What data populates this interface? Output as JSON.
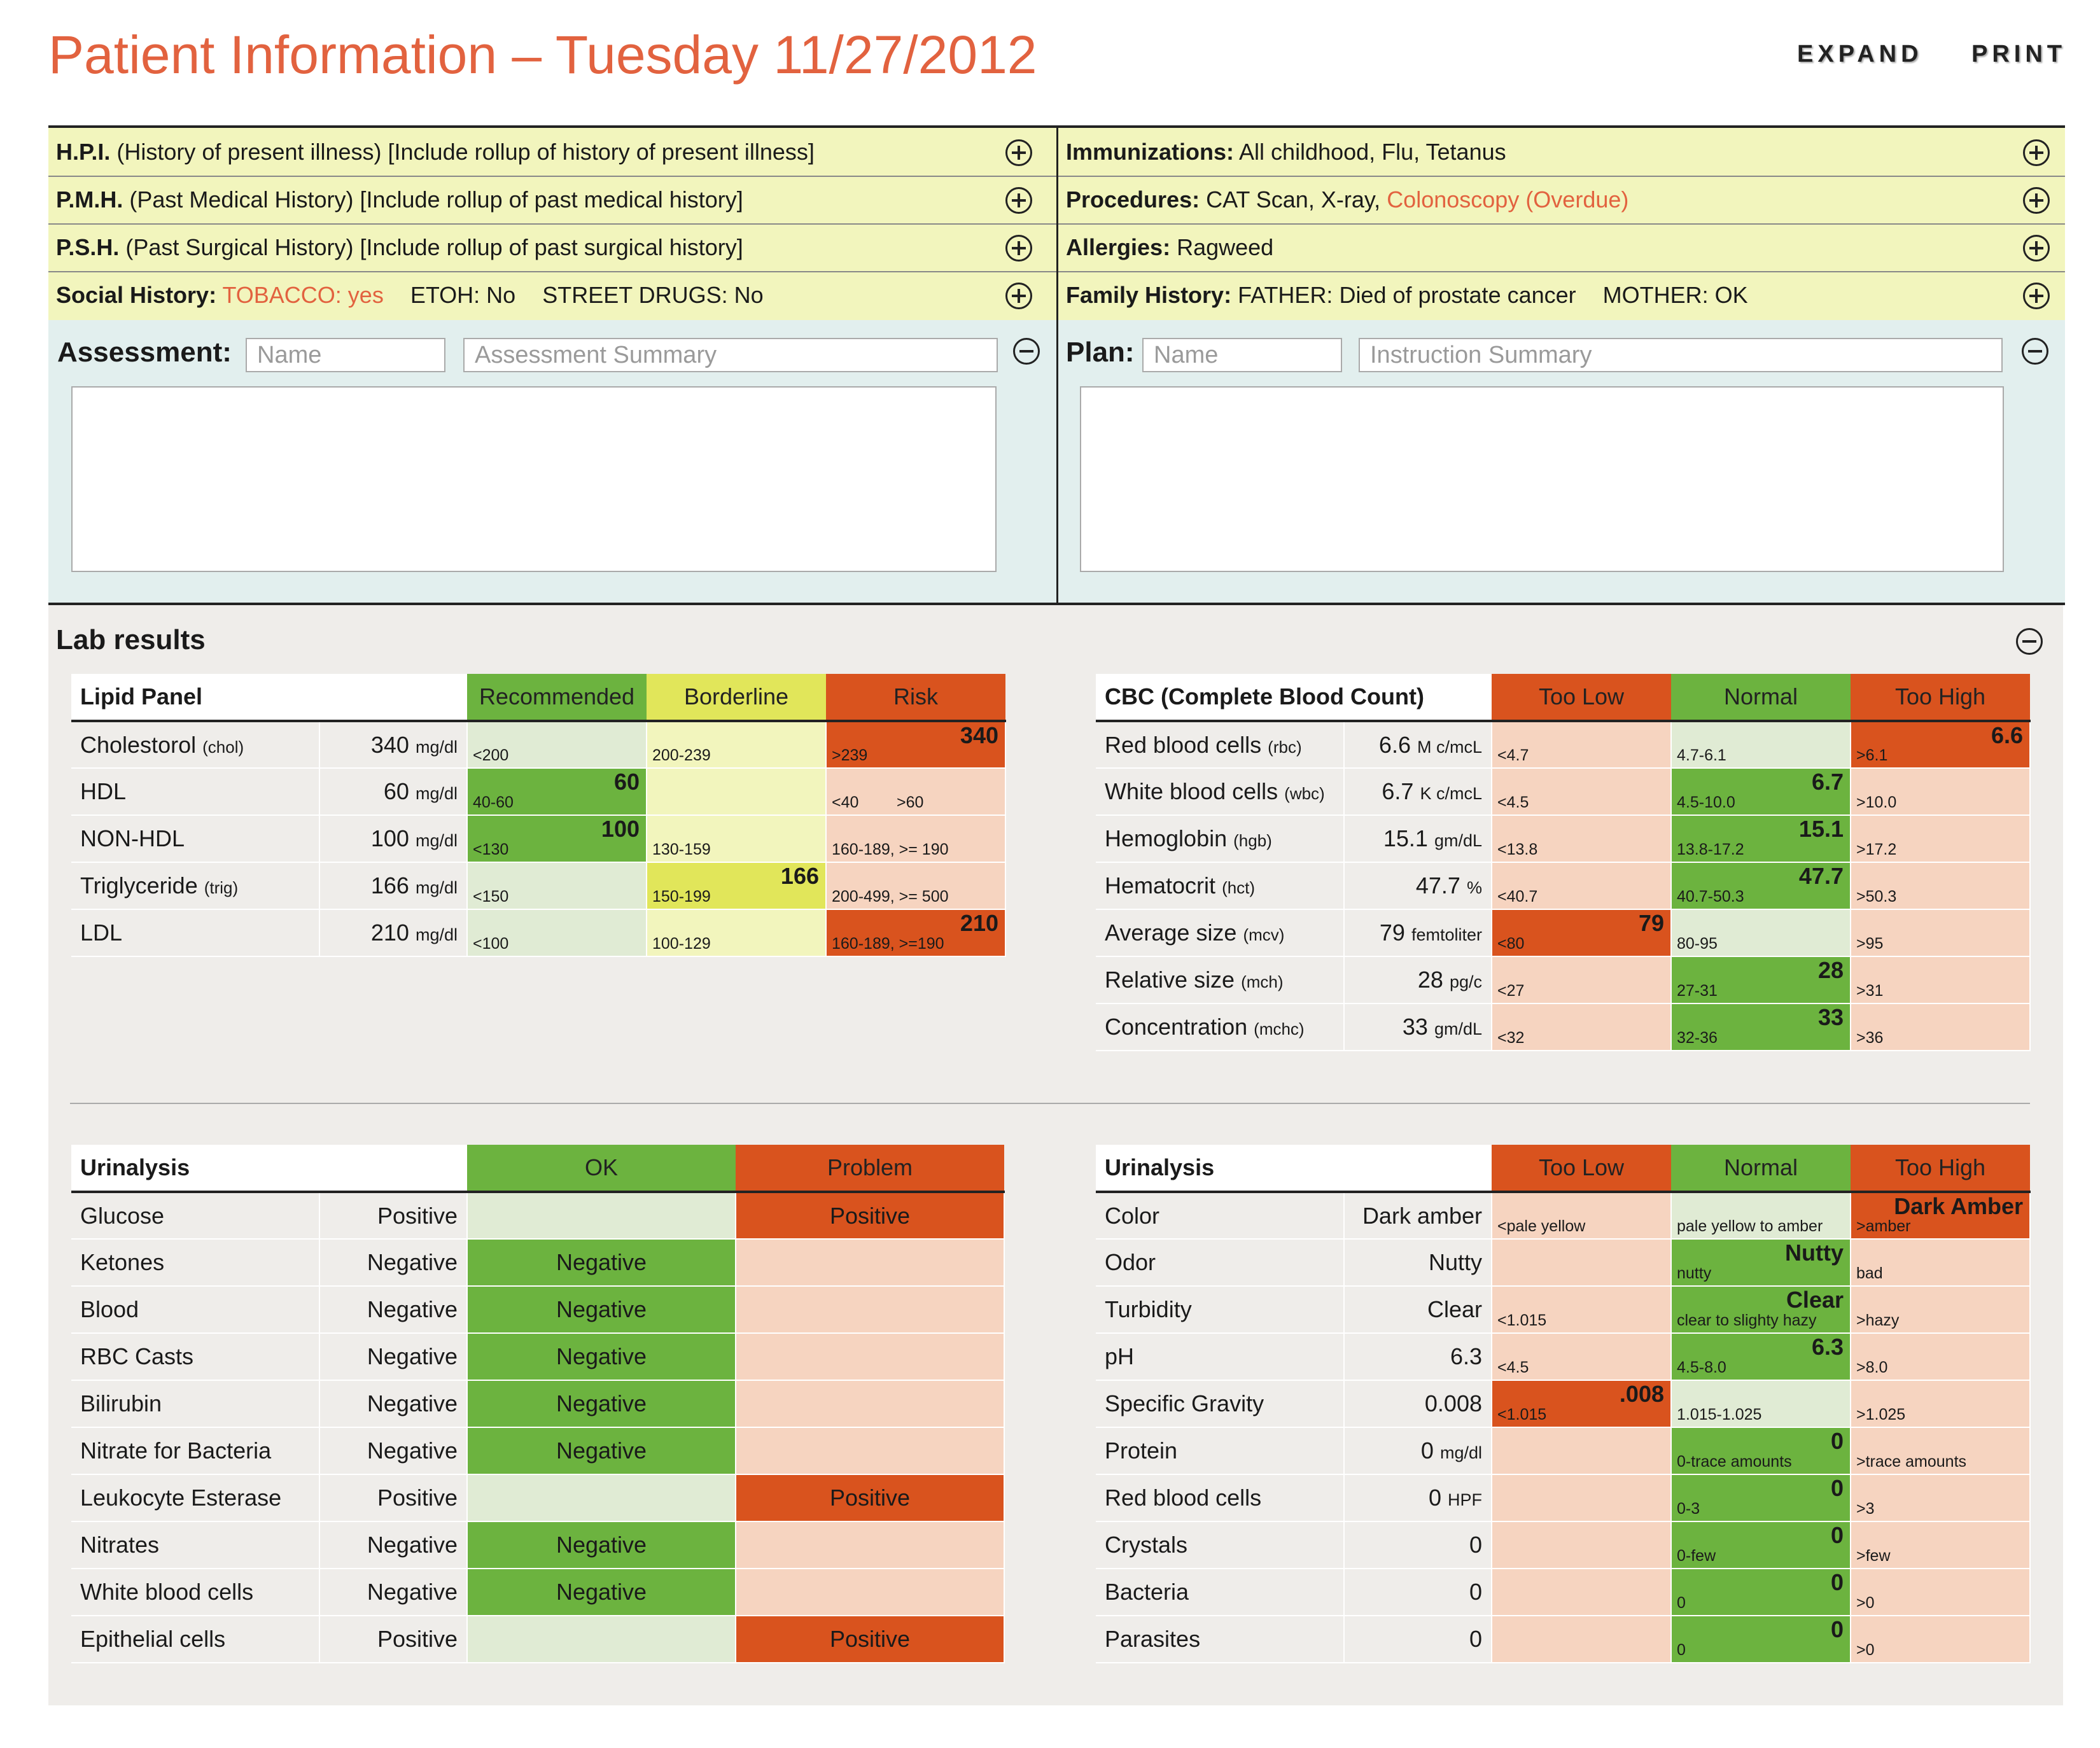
{
  "header": {
    "title": "Patient Information – Tuesday 11/27/2012",
    "expand": "EXPAND",
    "print": "PRINT"
  },
  "history_left": [
    {
      "label": "H.P.I.",
      "text": "(History of present illness) [Include rollup of history of present illness]"
    },
    {
      "label": "P.M.H.",
      "text": "(Past Medical History) [Include rollup of past medical history]"
    },
    {
      "label": "P.S.H.",
      "text": "(Past Surgical History) [Include rollup of past surgical history]"
    }
  ],
  "social": {
    "label": "Social History:",
    "tobacco": "TOBACCO: yes",
    "etoh": "ETOH: No",
    "drugs": "STREET DRUGS: No"
  },
  "history_right": {
    "immunizations": {
      "label": "Immunizations:",
      "text": "All childhood, Flu, Tetanus"
    },
    "procedures": {
      "label": "Procedures:",
      "text": "CAT Scan, X-ray,",
      "alert": "Colonoscopy (Overdue)"
    },
    "allergies": {
      "label": "Allergies:",
      "text": "Ragweed"
    },
    "family": {
      "label": "Family History:",
      "father": "FATHER: Died of prostate cancer",
      "mother": "MOTHER: OK"
    }
  },
  "assessment": {
    "label": "Assessment:",
    "name_placeholder": "Name",
    "summary_placeholder": "Assessment Summary"
  },
  "plan": {
    "label": "Plan:",
    "name_placeholder": "Name",
    "summary_placeholder": "Instruction Summary"
  },
  "labs": {
    "title": "Lab results",
    "lipid": {
      "title": "Lipid Panel",
      "headers": [
        "Recommended",
        "Borderline",
        "Risk"
      ],
      "rows": [
        {
          "name": "Cholestorol",
          "abbr": "(chol)",
          "value": "340",
          "unit": "mg/dl",
          "ranges": [
            "<200",
            "200-239",
            ">239"
          ],
          "hit": 2,
          "result": "340"
        },
        {
          "name": "HDL",
          "abbr": "",
          "value": "60",
          "unit": "mg/dl",
          "ranges": [
            "40-60",
            "",
            "<40"
          ],
          "range_extra": ">60",
          "hit": 0,
          "result": "60"
        },
        {
          "name": "NON-HDL",
          "abbr": "",
          "value": "100",
          "unit": "mg/dl",
          "ranges": [
            "<130",
            "130-159",
            "160-189, >= 190"
          ],
          "hit": 0,
          "result": "100"
        },
        {
          "name": "Triglyceride",
          "abbr": "(trig)",
          "value": "166",
          "unit": "mg/dl",
          "ranges": [
            "<150",
            "150-199",
            "200-499, >= 500"
          ],
          "hit": 1,
          "result": "166"
        },
        {
          "name": "LDL",
          "abbr": "",
          "value": "210",
          "unit": "mg/dl",
          "ranges": [
            "<100",
            "100-129",
            "160-189, >=190"
          ],
          "hit": 2,
          "result": "210"
        }
      ]
    },
    "cbc": {
      "title": "CBC (Complete Blood Count)",
      "headers": [
        "Too Low",
        "Normal",
        "Too High"
      ],
      "rows": [
        {
          "name": "Red blood cells",
          "abbr": "(rbc)",
          "value": "6.6",
          "unit": "M c/mcL",
          "ranges": [
            "<4.7",
            "4.7-6.1",
            ">6.1"
          ],
          "hit": 2,
          "result": "6.6"
        },
        {
          "name": "White blood cells",
          "abbr": "(wbc)",
          "value": "6.7",
          "unit": "K c/mcL",
          "ranges": [
            "<4.5",
            "4.5-10.0",
            ">10.0"
          ],
          "hit": 1,
          "result": "6.7"
        },
        {
          "name": "Hemoglobin",
          "abbr": "(hgb)",
          "value": "15.1",
          "unit": "gm/dL",
          "ranges": [
            "<13.8",
            "13.8-17.2",
            ">17.2"
          ],
          "hit": 1,
          "result": "15.1"
        },
        {
          "name": "Hematocrit",
          "abbr": "(hct)",
          "value": "47.7",
          "unit": "%",
          "ranges": [
            "<40.7",
            "40.7-50.3",
            ">50.3"
          ],
          "hit": 1,
          "result": "47.7"
        },
        {
          "name": "Average size",
          "abbr": "(mcv)",
          "value": "79",
          "unit": "femtoliter",
          "ranges": [
            "<80",
            "80-95",
            ">95"
          ],
          "hit": 0,
          "result": "79"
        },
        {
          "name": "Relative size",
          "abbr": "(mch)",
          "value": "28",
          "unit": "pg/c",
          "ranges": [
            "<27",
            "27-31",
            ">31"
          ],
          "hit": 1,
          "result": "28"
        },
        {
          "name": "Concentration",
          "abbr": "(mchc)",
          "value": "33",
          "unit": "gm/dL",
          "ranges": [
            "<32",
            "32-36",
            ">36"
          ],
          "hit": 1,
          "result": "33"
        }
      ]
    },
    "urinalysis1": {
      "title": "Urinalysis",
      "headers": [
        "OK",
        "Problem"
      ],
      "rows": [
        {
          "name": "Glucose",
          "value": "Positive",
          "hit": 1,
          "result": "Positive"
        },
        {
          "name": "Ketones",
          "value": "Negative",
          "hit": 0,
          "result": "Negative"
        },
        {
          "name": "Blood",
          "value": "Negative",
          "hit": 0,
          "result": "Negative"
        },
        {
          "name": "RBC Casts",
          "value": "Negative",
          "hit": 0,
          "result": "Negative"
        },
        {
          "name": "Bilirubin",
          "value": "Negative",
          "hit": 0,
          "result": "Negative"
        },
        {
          "name": "Nitrate for Bacteria",
          "value": "Negative",
          "hit": 0,
          "result": "Negative"
        },
        {
          "name": "Leukocyte Esterase",
          "value": "Positive",
          "hit": 1,
          "result": "Positive"
        },
        {
          "name": "Nitrates",
          "value": "Negative",
          "hit": 0,
          "result": "Negative"
        },
        {
          "name": "White blood cells",
          "value": "Negative",
          "hit": 0,
          "result": "Negative"
        },
        {
          "name": "Epithelial cells",
          "value": "Positive",
          "hit": 1,
          "result": "Positive"
        }
      ]
    },
    "urinalysis2": {
      "title": "Urinalysis",
      "headers": [
        "Too Low",
        "Normal",
        "Too High"
      ],
      "rows": [
        {
          "name": "Color",
          "value": "Dark amber",
          "unit": "",
          "ranges": [
            "<pale yellow",
            "pale yellow to amber",
            ">amber"
          ],
          "hit": 2,
          "result": "Dark Amber"
        },
        {
          "name": "Odor",
          "value": "Nutty",
          "unit": "",
          "ranges": [
            "",
            "nutty",
            "bad"
          ],
          "hit": 1,
          "result": "Nutty"
        },
        {
          "name": "Turbidity",
          "value": "Clear",
          "unit": "",
          "ranges": [
            "<1.015",
            "clear to slighty hazy",
            ">hazy"
          ],
          "hit": 1,
          "result": "Clear"
        },
        {
          "name": "pH",
          "value": "6.3",
          "unit": "",
          "ranges": [
            "<4.5",
            "4.5-8.0",
            ">8.0"
          ],
          "hit": 1,
          "result": "6.3"
        },
        {
          "name": "Specific Gravity",
          "value": "0.008",
          "unit": "",
          "ranges": [
            "<1.015",
            "1.015-1.025",
            ">1.025"
          ],
          "hit": 0,
          "result": ".008"
        },
        {
          "name": "Protein",
          "value": "0",
          "unit": "mg/dl",
          "ranges": [
            "",
            "0-trace amounts",
            ">trace amounts"
          ],
          "hit": 1,
          "result": "0"
        },
        {
          "name": "Red blood cells",
          "value": "0",
          "unit": "HPF",
          "ranges": [
            "",
            "0-3",
            ">3"
          ],
          "hit": 1,
          "result": "0"
        },
        {
          "name": "Crystals",
          "value": "0",
          "unit": "",
          "ranges": [
            "",
            "0-few",
            ">few"
          ],
          "hit": 1,
          "result": "0"
        },
        {
          "name": "Bacteria",
          "value": "0",
          "unit": "",
          "ranges": [
            "",
            "0",
            ">0"
          ],
          "hit": 1,
          "result": "0"
        },
        {
          "name": "Parasites",
          "value": "0",
          "unit": "",
          "ranges": [
            "",
            "0",
            ">0"
          ],
          "hit": 1,
          "result": "0"
        }
      ]
    }
  },
  "colors": {
    "accent": "#e2623f",
    "ok_green": "#6cb33f",
    "borderline_yellow": "#e1e65a",
    "risk_red": "#d9531e"
  }
}
